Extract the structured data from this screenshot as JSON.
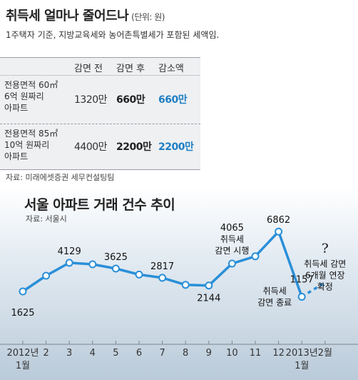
{
  "table_section": {
    "title": "취득세 얼마나 줄어드나",
    "unit": "(단위: 원)",
    "note": "1주택자 기준, 지방교육세와 농어촌특별세가 포함된 세액임.",
    "columns": [
      "감면 전",
      "감면 후",
      "감소액"
    ],
    "rows": [
      {
        "label": [
          "전용면적 60㎡",
          "6억 원짜리",
          "아파트"
        ],
        "before": "1320만",
        "after": "660만",
        "diff": "660만"
      },
      {
        "label": [
          "전용면적 85㎡",
          "10억 원짜리",
          "아파트"
        ],
        "before": "4400만",
        "after": "2200만",
        "diff": "2200만"
      }
    ],
    "source": "자료: 미래에셋증권 세무컨설팅팀",
    "colors": {
      "diff": "#1f7fc4",
      "table_bg": "#eef0f2"
    }
  },
  "chart_data": {
    "type": "line",
    "title": "서울 아파트 거래 건수 추이",
    "source": "자료: 서울시",
    "categories": [
      "2012년\n1월",
      "2",
      "3",
      "4",
      "5",
      "6",
      "7",
      "8",
      "9",
      "10",
      "11",
      "12",
      "2013년\n1월",
      "2월"
    ],
    "values": [
      1625,
      3000,
      4129,
      4000,
      3625,
      3100,
      2817,
      2200,
      2144,
      4065,
      4700,
      6862,
      1157,
      null
    ],
    "labeled_values": [
      {
        "index": 0,
        "text": "1625"
      },
      {
        "index": 2,
        "text": "4129"
      },
      {
        "index": 4,
        "text": "3625"
      },
      {
        "index": 6,
        "text": "2817"
      },
      {
        "index": 8,
        "text": "2144"
      },
      {
        "index": 9,
        "text": "4065"
      },
      {
        "index": 11,
        "text": "6862"
      },
      {
        "index": 12,
        "text": "1157"
      }
    ],
    "annotations": [
      {
        "index": 9,
        "lines": [
          "취득세",
          "감면 시행"
        ]
      },
      {
        "index": 12,
        "lines": [
          "취득세",
          "감면 종료"
        ]
      },
      {
        "index": 13,
        "lines": [
          "취득세 감면",
          "6개월 연장",
          "확정"
        ]
      }
    ],
    "projection_mark": "?",
    "ylim": [
      0,
      7500
    ],
    "grid": false,
    "colors": {
      "line": "#2a8fd8",
      "marker_fill": "#ffffff"
    }
  }
}
